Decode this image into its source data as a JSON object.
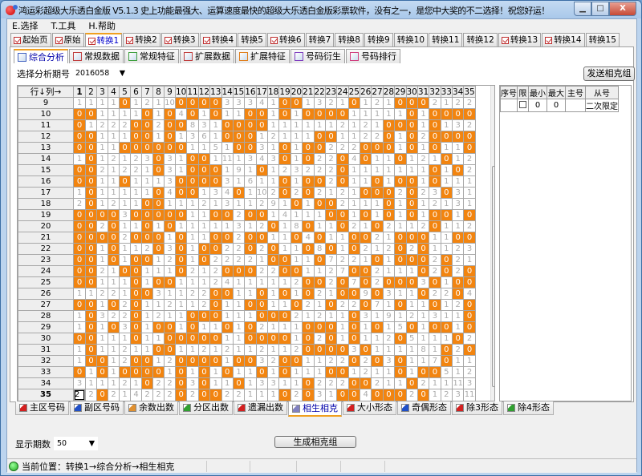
{
  "window": {
    "title": "鸿运彩超级大乐透白金版 V5.1.3  史上功能最强大、运算速度最快的超级大乐透白金版彩票软件，没有之一，是您中大奖的不二选择！祝您好运！",
    "minimize": "▁",
    "maximize": "□",
    "close": "X"
  },
  "menu": [
    "E.选择",
    "T.工具",
    "H.帮助"
  ],
  "top_tabs": [
    {
      "label": "起始页",
      "checked": true
    },
    {
      "label": "原始",
      "checked": true
    },
    {
      "label": "转换1",
      "checked": true,
      "active": true
    },
    {
      "label": "转换2",
      "checked": true
    },
    {
      "label": "转换3",
      "checked": true
    },
    {
      "label": "转换4",
      "checked": true
    },
    {
      "label": "转换5",
      "checked": false
    },
    {
      "label": "转换6",
      "checked": true
    },
    {
      "label": "转换7",
      "checked": false
    },
    {
      "label": "转换8",
      "checked": false
    },
    {
      "label": "转换9",
      "checked": false
    },
    {
      "label": "转换10",
      "checked": false
    },
    {
      "label": "转换11",
      "checked": false
    },
    {
      "label": "转换12",
      "checked": false
    },
    {
      "label": "转换13",
      "checked": true
    },
    {
      "label": "转换14",
      "checked": true
    },
    {
      "label": "转换15",
      "checked": false
    }
  ],
  "sub_tabs": [
    {
      "label": "综合分析",
      "active": true
    },
    {
      "label": "常规数据"
    },
    {
      "label": "常规特征"
    },
    {
      "label": "扩展数据"
    },
    {
      "label": "扩展特征"
    },
    {
      "label": "号码衍生"
    },
    {
      "label": "号码排行"
    }
  ],
  "period": {
    "label": "选择分析期号",
    "value": "2016058"
  },
  "send_button": "发送相克组",
  "grid": {
    "corner": "行↓列→",
    "columns": [
      "1",
      "2",
      "3",
      "4",
      "5",
      "6",
      "7",
      "8",
      "9",
      "10",
      "11",
      "12",
      "13",
      "14",
      "15",
      "16",
      "17",
      "18",
      "19",
      "20",
      "21",
      "22",
      "23",
      "24",
      "25",
      "26",
      "27",
      "28",
      "29",
      "30",
      "31",
      "32",
      "33",
      "34",
      "35"
    ],
    "highlight_color": "#f2840f",
    "selected_cell": {
      "row": "35",
      "column": "1"
    },
    "rows": [
      {
        "label": "9",
        "cells": [
          "1",
          "1",
          "1",
          "1",
          "0",
          "1",
          "2",
          "1",
          "10",
          "0",
          "0",
          "0",
          "0",
          "3",
          "3",
          "3",
          "4",
          "1",
          "0",
          "0",
          "1",
          "3",
          "2",
          "1",
          "0",
          "1",
          "2",
          "1",
          "0",
          "0",
          "0",
          "2",
          "1",
          "2",
          "2"
        ]
      },
      {
        "label": "10",
        "cells": [
          "0",
          "0",
          "1",
          "1",
          "1",
          "1",
          "0",
          "1",
          "0",
          "4",
          "0",
          "1",
          "0",
          "1",
          "1",
          "0",
          "0",
          "1",
          "0",
          "1",
          "0",
          "0",
          "0",
          "0",
          "1",
          "1",
          "1",
          "1",
          "1",
          "0",
          "1",
          "0",
          "0",
          "0",
          "0"
        ]
      },
      {
        "label": "11",
        "cells": [
          "0",
          "1",
          "2",
          "2",
          "2",
          "0",
          "0",
          "2",
          "0",
          "0",
          "8",
          "3",
          "1",
          "0",
          "0",
          "0",
          "0",
          "1",
          "1",
          "1",
          "1",
          "1",
          "1",
          "2",
          "1",
          "2",
          "1",
          "0",
          "0",
          "0",
          "1",
          "0",
          "1",
          "3",
          "2"
        ]
      },
      {
        "label": "12",
        "cells": [
          "0",
          "0",
          "1",
          "1",
          "1",
          "0",
          "0",
          "1",
          "0",
          "1",
          "3",
          "6",
          "1",
          "0",
          "0",
          "0",
          "1",
          "2",
          "1",
          "1",
          "1",
          "0",
          "0",
          "1",
          "1",
          "2",
          "2",
          "0",
          "1",
          "0",
          "2",
          "0",
          "0",
          "0",
          "0"
        ]
      },
      {
        "label": "13",
        "cells": [
          "0",
          "0",
          "1",
          "1",
          "0",
          "0",
          "0",
          "0",
          "0",
          "0",
          "1",
          "1",
          "5",
          "1",
          "0",
          "0",
          "3",
          "1",
          "0",
          "1",
          "0",
          "0",
          "2",
          "2",
          "2",
          "0",
          "0",
          "0",
          "1",
          "0",
          "1",
          "0",
          "1",
          "1",
          "0"
        ]
      },
      {
        "label": "14",
        "cells": [
          "1",
          "0",
          "1",
          "2",
          "1",
          "2",
          "3",
          "0",
          "3",
          "1",
          "0",
          "0",
          "1",
          "11",
          "1",
          "3",
          "4",
          "3",
          "0",
          "1",
          "0",
          "2",
          "2",
          "0",
          "4",
          "0",
          "1",
          "1",
          "0",
          "1",
          "2",
          "1",
          "0",
          "1",
          "2"
        ]
      },
      {
        "label": "15",
        "cells": [
          "0",
          "0",
          "2",
          "1",
          "2",
          "2",
          "1",
          "0",
          "3",
          "1",
          "0",
          "0",
          "0",
          "1",
          "9",
          "1",
          "0",
          "1",
          "2",
          "3",
          "2",
          "2",
          "2",
          "0",
          "1",
          "1",
          "1",
          "1",
          "1",
          "1",
          "1",
          "0",
          "1",
          "0",
          "2"
        ]
      },
      {
        "label": "16",
        "cells": [
          "0",
          "0",
          "1",
          "1",
          "0",
          "1",
          "1",
          "1",
          "3",
          "0",
          "0",
          "0",
          "0",
          "3",
          "1",
          "6",
          "1",
          "1",
          "0",
          "1",
          "0",
          "0",
          "2",
          "0",
          "1",
          "1",
          "0",
          "1",
          "0",
          "0",
          "1",
          "0",
          "1",
          "1",
          "1"
        ]
      },
      {
        "label": "17",
        "cells": [
          "1",
          "0",
          "1",
          "1",
          "1",
          "1",
          "1",
          "0",
          "4",
          "0",
          "0",
          "1",
          "3",
          "4",
          "0",
          "1",
          "10",
          "2",
          "0",
          "2",
          "0",
          "2",
          "1",
          "2",
          "1",
          "0",
          "0",
          "0",
          "2",
          "0",
          "2",
          "3",
          "0",
          "3",
          "1"
        ]
      },
      {
        "label": "18",
        "cells": [
          "2",
          "0",
          "1",
          "2",
          "1",
          "1",
          "0",
          "0",
          "1",
          "1",
          "1",
          "2",
          "1",
          "3",
          "1",
          "1",
          "2",
          "9",
          "1",
          "0",
          "1",
          "0",
          "0",
          "2",
          "1",
          "1",
          "1",
          "0",
          "1",
          "0",
          "1",
          "2",
          "1",
          "3",
          "1"
        ]
      },
      {
        "label": "19",
        "cells": [
          "0",
          "0",
          "0",
          "0",
          "3",
          "0",
          "0",
          "0",
          "0",
          "0",
          "1",
          "1",
          "0",
          "0",
          "2",
          "0",
          "0",
          "1",
          "4",
          "1",
          "1",
          "1",
          "0",
          "0",
          "1",
          "0",
          "1",
          "0",
          "1",
          "0",
          "1",
          "0",
          "0",
          "1",
          "0"
        ]
      },
      {
        "label": "20",
        "cells": [
          "0",
          "0",
          "2",
          "0",
          "1",
          "1",
          "0",
          "1",
          "0",
          "1",
          "1",
          "1",
          "1",
          "1",
          "3",
          "1",
          "2",
          "0",
          "1",
          "8",
          "0",
          "1",
          "1",
          "0",
          "2",
          "1",
          "0",
          "2",
          "1",
          "1",
          "2",
          "0",
          "1",
          "1",
          "2"
        ]
      },
      {
        "label": "21",
        "cells": [
          "0",
          "0",
          "0",
          "0",
          "2",
          "0",
          "0",
          "0",
          "1",
          "0",
          "1",
          "1",
          "0",
          "0",
          "2",
          "0",
          "0",
          "1",
          "1",
          "0",
          "4",
          "0",
          "1",
          "1",
          "0",
          "0",
          "2",
          "1",
          "0",
          "0",
          "0",
          "1",
          "1",
          "0",
          "0"
        ]
      },
      {
        "label": "22",
        "cells": [
          "0",
          "0",
          "1",
          "0",
          "1",
          "1",
          "2",
          "0",
          "3",
          "0",
          "1",
          "0",
          "0",
          "2",
          "2",
          "0",
          "2",
          "0",
          "1",
          "1",
          "0",
          "8",
          "0",
          "1",
          "0",
          "2",
          "1",
          "2",
          "0",
          "2",
          "0",
          "1",
          "1",
          "2",
          "3"
        ]
      },
      {
        "label": "23",
        "cells": [
          "0",
          "0",
          "1",
          "0",
          "1",
          "0",
          "0",
          "1",
          "2",
          "0",
          "1",
          "0",
          "2",
          "2",
          "2",
          "2",
          "1",
          "0",
          "0",
          "1",
          "1",
          "0",
          "7",
          "2",
          "2",
          "1",
          "0",
          "1",
          "0",
          "0",
          "0",
          "2",
          "0",
          "2",
          "1"
        ]
      },
      {
        "label": "24",
        "cells": [
          "0",
          "0",
          "2",
          "1",
          "0",
          "0",
          "1",
          "1",
          "1",
          "0",
          "2",
          "1",
          "2",
          "0",
          "0",
          "0",
          "2",
          "2",
          "0",
          "0",
          "1",
          "1",
          "2",
          "7",
          "0",
          "0",
          "2",
          "1",
          "1",
          "1",
          "0",
          "2",
          "0",
          "2",
          "0"
        ]
      },
      {
        "label": "25",
        "cells": [
          "0",
          "0",
          "1",
          "1",
          "1",
          "0",
          "1",
          "0",
          "0",
          "1",
          "1",
          "1",
          "2",
          "4",
          "1",
          "1",
          "1",
          "1",
          "1",
          "2",
          "0",
          "0",
          "2",
          "0",
          "7",
          "0",
          "2",
          "0",
          "0",
          "0",
          "3",
          "0",
          "1",
          "0",
          "0"
        ]
      },
      {
        "label": "26",
        "cells": [
          "1",
          "1",
          "2",
          "2",
          "1",
          "0",
          "0",
          "3",
          "1",
          "1",
          "2",
          "2",
          "0",
          "0",
          "1",
          "1",
          "0",
          "1",
          "0",
          "1",
          "0",
          "2",
          "1",
          "0",
          "0",
          "9",
          "0",
          "3",
          "1",
          "1",
          "0",
          "2",
          "2",
          "0",
          "4"
        ]
      },
      {
        "label": "27",
        "cells": [
          "0",
          "0",
          "1",
          "0",
          "2",
          "0",
          "1",
          "1",
          "2",
          "1",
          "1",
          "2",
          "0",
          "1",
          "1",
          "0",
          "0",
          "1",
          "1",
          "0",
          "2",
          "1",
          "0",
          "2",
          "2",
          "0",
          "7",
          "1",
          "0",
          "1",
          "1",
          "0",
          "1",
          "2",
          "0"
        ]
      },
      {
        "label": "28",
        "cells": [
          "1",
          "0",
          "3",
          "2",
          "2",
          "0",
          "1",
          "2",
          "1",
          "1",
          "0",
          "0",
          "0",
          "1",
          "1",
          "1",
          "0",
          "0",
          "0",
          "2",
          "1",
          "2",
          "1",
          "1",
          "0",
          "3",
          "1",
          "9",
          "1",
          "2",
          "1",
          "3",
          "1",
          "1",
          "0"
        ]
      },
      {
        "label": "29",
        "cells": [
          "1",
          "0",
          "1",
          "0",
          "3",
          "0",
          "1",
          "0",
          "0",
          "1",
          "0",
          "1",
          "1",
          "0",
          "1",
          "0",
          "2",
          "1",
          "1",
          "1",
          "0",
          "0",
          "0",
          "1",
          "0",
          "1",
          "0",
          "1",
          "5",
          "0",
          "1",
          "0",
          "0",
          "1",
          "0"
        ]
      },
      {
        "label": "30",
        "cells": [
          "0",
          "0",
          "1",
          "1",
          "1",
          "0",
          "1",
          "1",
          "0",
          "0",
          "0",
          "0",
          "0",
          "1",
          "1",
          "0",
          "0",
          "0",
          "0",
          "1",
          "0",
          "2",
          "0",
          "1",
          "0",
          "1",
          "1",
          "2",
          "0",
          "5",
          "1",
          "1",
          "1",
          "0",
          "2"
        ]
      },
      {
        "label": "31",
        "cells": [
          "1",
          "0",
          "1",
          "1",
          "2",
          "1",
          "1",
          "0",
          "0",
          "1",
          "1",
          "2",
          "1",
          "2",
          "1",
          "1",
          "2",
          "1",
          "1",
          "2",
          "0",
          "0",
          "0",
          "0",
          "3",
          "0",
          "1",
          "1",
          "1",
          "1",
          "8",
          "1",
          "0",
          "2",
          "0"
        ]
      },
      {
        "label": "32",
        "cells": [
          "1",
          "0",
          "0",
          "1",
          "2",
          "0",
          "0",
          "1",
          "2",
          "0",
          "0",
          "0",
          "0",
          "1",
          "0",
          "0",
          "3",
          "2",
          "0",
          "0",
          "1",
          "1",
          "2",
          "2",
          "0",
          "2",
          "0",
          "3",
          "0",
          "1",
          "1",
          "7",
          "0",
          "1",
          "1"
        ]
      },
      {
        "label": "33",
        "cells": [
          "0",
          "1",
          "0",
          "1",
          "0",
          "0",
          "0",
          "0",
          "1",
          "0",
          "1",
          "0",
          "1",
          "0",
          "1",
          "1",
          "0",
          "1",
          "0",
          "1",
          "1",
          "1",
          "0",
          "0",
          "1",
          "2",
          "1",
          "1",
          "0",
          "1",
          "0",
          "0",
          "5",
          "1",
          "2"
        ]
      },
      {
        "label": "34",
        "cells": [
          "3",
          "1",
          "1",
          "1",
          "2",
          "1",
          "0",
          "2",
          "2",
          "0",
          "3",
          "0",
          "1",
          "1",
          "0",
          "1",
          "3",
          "3",
          "1",
          "1",
          "0",
          "2",
          "2",
          "2",
          "0",
          "0",
          "2",
          "1",
          "1",
          "0",
          "2",
          "1",
          "1",
          "11",
          "3"
        ]
      },
      {
        "label": "35",
        "cells": [
          "2",
          "2",
          "0",
          "2",
          "1",
          "4",
          "2",
          "2",
          "2",
          "0",
          "2",
          "0",
          "0",
          "2",
          "2",
          "1",
          "1",
          "1",
          "0",
          "2",
          "0",
          "3",
          "1",
          "0",
          "0",
          "4",
          "0",
          "0",
          "0",
          "2",
          "0",
          "1",
          "2",
          "3",
          "11"
        ]
      }
    ]
  },
  "right_table": {
    "headers": [
      "序号",
      "限",
      "最小",
      "最大",
      "主号",
      "从号"
    ],
    "rows": [
      {
        "index": "",
        "limit_checked": false,
        "min": "0",
        "max": "0",
        "main": "",
        "secondary": "二次限定"
      }
    ]
  },
  "bottom_tabs": [
    {
      "label": "主区号码",
      "color": "#d42020"
    },
    {
      "label": "副区号码",
      "color": "#2050c8"
    },
    {
      "label": "余数出数",
      "color": "#e09030"
    },
    {
      "label": "分区出数",
      "color": "#30a030"
    },
    {
      "label": "遗漏出数",
      "color": "#d42020"
    },
    {
      "label": "相生相克",
      "color": "#8080c0",
      "active": true
    },
    {
      "label": "大小形态",
      "color": "#d42020"
    },
    {
      "label": "奇偶形态",
      "color": "#2050c8"
    },
    {
      "label": "除3形态",
      "color": "#d42020"
    },
    {
      "label": "除4形态",
      "color": "#30a030"
    }
  ],
  "show_periods": {
    "label": "显示期数",
    "value": "50"
  },
  "generate_button": "生成相克组",
  "status": {
    "text": "当前位置：转换1→综合分析→相生相克"
  }
}
